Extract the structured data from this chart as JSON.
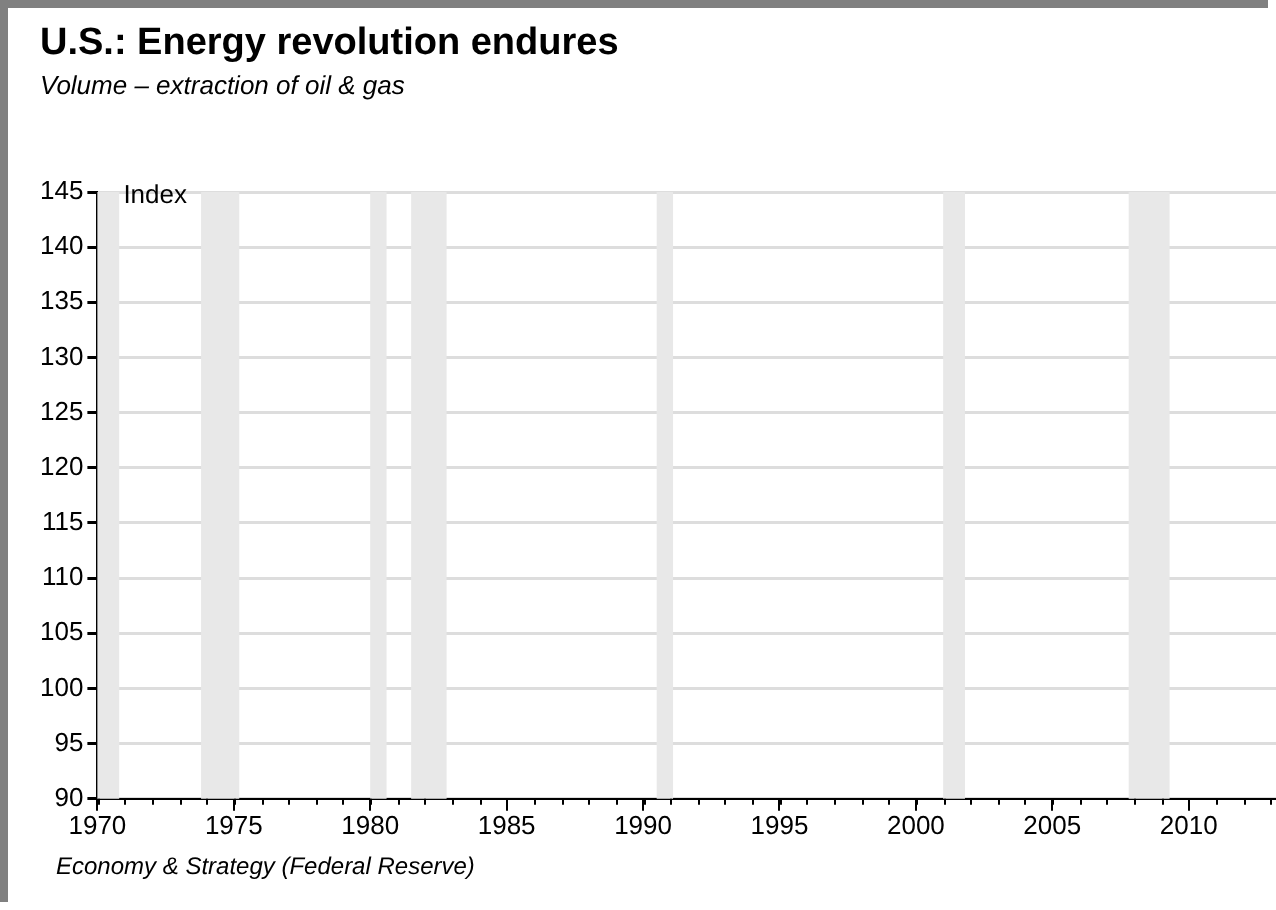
{
  "chart_data": {
    "type": "line",
    "title": "U.S.: Energy revolution endures",
    "subtitle": "Volume – extraction of oil & gas",
    "ylabel": "Index",
    "xlim": [
      1970,
      2013.2
    ],
    "xticks": [
      1970,
      1975,
      1980,
      1985,
      1990,
      1995,
      2000,
      2005,
      2010
    ],
    "ylim": [
      90,
      145
    ],
    "yticks": [
      90,
      95,
      100,
      105,
      110,
      115,
      120,
      125,
      130,
      135,
      140,
      145
    ],
    "grid": "y",
    "legend": false,
    "bands": [
      {
        "axis": "x",
        "from": 1970,
        "to": 1970.8,
        "color": "#e8e8e8"
      },
      {
        "axis": "x",
        "from": 1973.8,
        "to": 1975.2,
        "color": "#e8e8e8"
      },
      {
        "axis": "x",
        "from": 1980,
        "to": 1980.6,
        "color": "#e8e8e8"
      },
      {
        "axis": "x",
        "from": 1981.5,
        "to": 1982.8,
        "color": "#e8e8e8"
      },
      {
        "axis": "x",
        "from": 1990.5,
        "to": 1991.1,
        "color": "#e8e8e8"
      },
      {
        "axis": "x",
        "from": 2001,
        "to": 2001.8,
        "color": "#e8e8e8"
      },
      {
        "axis": "x",
        "from": 2007.8,
        "to": 2009.3,
        "color": "#e8e8e8"
      }
    ],
    "annotations": [
      "Economy & Strategy (Federal Reserve)"
    ]
  }
}
